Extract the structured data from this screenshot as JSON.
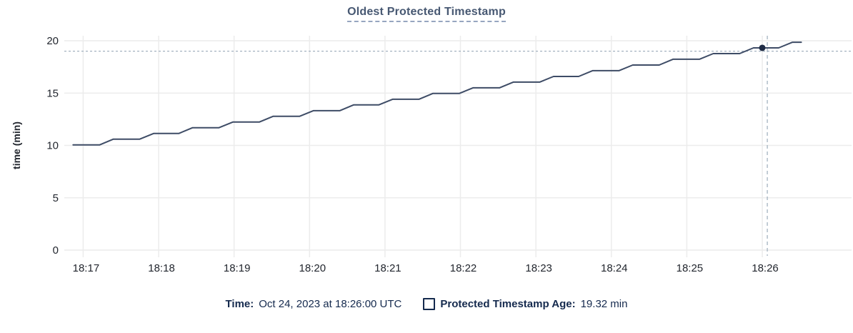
{
  "title": "Oldest Protected Timestamp",
  "colors": {
    "line": "#3e4c66",
    "marker": "#1e2a44",
    "grid": "#ececec",
    "crosshair": "#a3b2c0",
    "tick_text": "#22262e",
    "axis_title_text": "#22262e",
    "title_text": "#475872",
    "legend_text": "#152a4e"
  },
  "chart_data": {
    "type": "line",
    "title": "Oldest Protected Timestamp",
    "xlabel": "",
    "ylabel": "time (min)",
    "ylim": [
      0,
      20
    ],
    "y_ticks": [
      0,
      5,
      10,
      15,
      20
    ],
    "x_ticks": [
      {
        "t": 60,
        "label": "18:17"
      },
      {
        "t": 120,
        "label": "18:18"
      },
      {
        "t": 180,
        "label": "18:19"
      },
      {
        "t": 240,
        "label": "18:20"
      },
      {
        "t": 300,
        "label": "18:21"
      },
      {
        "t": 360,
        "label": "18:22"
      },
      {
        "t": 420,
        "label": "18:23"
      },
      {
        "t": 480,
        "label": "18:24"
      },
      {
        "t": 540,
        "label": "18:25"
      },
      {
        "t": 600,
        "label": "18:26"
      }
    ],
    "x_axis_note": "t = seconds after 18:16:00 UTC",
    "x_range_seconds": [
      45,
      671
    ],
    "grid": true,
    "legend_position": "bottom",
    "series": [
      {
        "name": "Protected Timestamp Age",
        "points": [
          [
            52,
            10.05
          ],
          [
            73,
            10.05
          ],
          [
            84,
            10.6
          ],
          [
            105,
            10.6
          ],
          [
            116,
            11.14
          ],
          [
            136,
            11.14
          ],
          [
            147,
            11.69
          ],
          [
            168,
            11.69
          ],
          [
            179,
            12.23
          ],
          [
            200,
            12.23
          ],
          [
            211,
            12.78
          ],
          [
            232,
            12.78
          ],
          [
            243,
            13.32
          ],
          [
            264,
            13.32
          ],
          [
            275,
            13.87
          ],
          [
            295,
            13.87
          ],
          [
            306,
            14.41
          ],
          [
            327,
            14.41
          ],
          [
            338,
            14.96
          ],
          [
            359,
            14.96
          ],
          [
            370,
            15.5
          ],
          [
            391,
            15.5
          ],
          [
            402,
            16.05
          ],
          [
            423,
            16.05
          ],
          [
            434,
            16.59
          ],
          [
            454,
            16.59
          ],
          [
            465,
            17.14
          ],
          [
            486,
            17.14
          ],
          [
            497,
            17.68
          ],
          [
            518,
            17.68
          ],
          [
            529,
            18.23
          ],
          [
            550,
            18.23
          ],
          [
            561,
            18.77
          ],
          [
            582,
            18.77
          ],
          [
            593,
            19.32
          ],
          [
            613,
            19.32
          ],
          [
            624,
            19.86
          ],
          [
            631,
            19.86
          ]
        ]
      }
    ],
    "hover": {
      "crosshair_t": 604,
      "crosshair_value": 19.0,
      "marker_t": 600,
      "marker_value": 19.32
    }
  },
  "legend": {
    "time_label": "Time:",
    "time_value": "Oct 24, 2023 at 18:26:00 UTC",
    "series_label": "Protected Timestamp Age:",
    "series_value": "19.32 min"
  }
}
